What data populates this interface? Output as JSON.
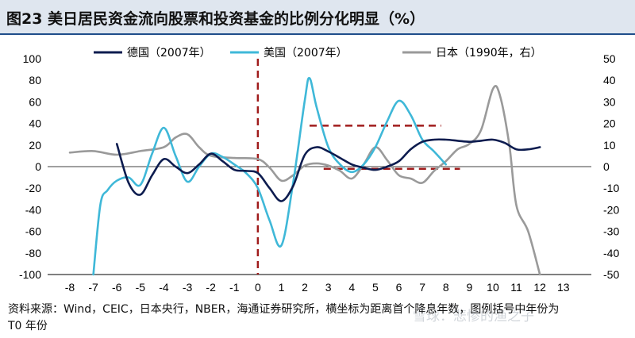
{
  "title": "图23 美日居民资金流向股票和投资基金的比例分化明显（%）",
  "source": {
    "line1": "资料来源：Wind，CEIC，日本央行，NBER，海通证券研究所，横坐标为距离首个降息年数，图例括号中年份为",
    "line2": "T0 年份"
  },
  "watermark": "雪球：悲惨的渔之子",
  "colors": {
    "germany": "#0d1c4f",
    "usa": "#3fb8d8",
    "japan": "#9a9a9a",
    "dash": "#a01c1c",
    "title_bar": "#dfe6ef"
  },
  "chart_data": {
    "type": "line",
    "title": "美日居民资金流向股票和投资基金的比例分化明显（%）",
    "xlabel": "",
    "ylabel": "",
    "xlim": [
      -8,
      13
    ],
    "ylim": [
      -100,
      100
    ],
    "y2lim": [
      -50,
      50
    ],
    "legend_position": "top",
    "x_ticks": [
      -8,
      -7,
      -6,
      -5,
      -4,
      -3,
      -2,
      -1,
      0,
      1,
      2,
      3,
      4,
      5,
      6,
      7,
      8,
      9,
      10,
      11,
      12,
      13
    ],
    "y_ticks": [
      -100,
      -80,
      -60,
      -40,
      -20,
      0,
      20,
      40,
      60,
      80,
      100
    ],
    "y2_ticks": [
      -50,
      -40,
      -30,
      -20,
      -10,
      0,
      10,
      20,
      30,
      40,
      50
    ],
    "series": [
      {
        "name": "德国（2007年）",
        "key": "germany",
        "axis": "left",
        "x": [
          -6,
          -5.5,
          -5,
          -4.5,
          -4,
          -3.5,
          -3,
          -2.5,
          -2,
          -1.5,
          -1,
          -0.5,
          0,
          0.5,
          1,
          1.5,
          2,
          2.5,
          3,
          3.5,
          4,
          4.5,
          5,
          5.5,
          6,
          6.5,
          7,
          7.5,
          8,
          8.5,
          9,
          9.5,
          10,
          10.5,
          11,
          11.5,
          12
        ],
        "y": [
          21,
          -15,
          -26,
          -8,
          7,
          0,
          -6,
          2,
          12,
          5,
          -3,
          -4,
          -6,
          -20,
          -32,
          -18,
          11,
          18,
          14,
          8,
          2,
          -1,
          -3,
          0,
          5,
          16,
          23,
          25,
          25,
          24,
          23,
          24,
          25,
          22,
          16,
          16,
          18
        ]
      },
      {
        "name": "美国（2007年）",
        "key": "usa",
        "axis": "left",
        "x": [
          -7,
          -6.7,
          -6.4,
          -6,
          -5.5,
          -5,
          -4.5,
          -4,
          -3.5,
          -3,
          -2.5,
          -2,
          -1.5,
          -1,
          -0.5,
          0,
          0.5,
          1,
          1.5,
          2,
          2.2,
          2.5,
          3,
          3.5,
          4,
          4.5,
          5,
          5.5,
          6,
          6.5,
          7,
          7.5,
          8
        ],
        "y": [
          -100,
          -35,
          -22,
          -13,
          -10,
          -17,
          12,
          36,
          10,
          -14,
          0,
          12,
          9,
          2,
          -6,
          -20,
          -50,
          -73,
          -15,
          62,
          82,
          55,
          18,
          2,
          -5,
          2,
          18,
          42,
          61,
          48,
          25,
          14,
          2
        ]
      },
      {
        "name": "日本（1990年，右）",
        "key": "japan",
        "axis": "right",
        "x": [
          -8,
          -7,
          -6,
          -5,
          -4,
          -3.5,
          -3,
          -2.5,
          -2,
          -1,
          0,
          0.5,
          1,
          1.5,
          2,
          2.5,
          3,
          3.5,
          4,
          4.5,
          5,
          5.5,
          6,
          6.5,
          7,
          7.5,
          8,
          8.5,
          9,
          9.5,
          10,
          10.3,
          10.7,
          11,
          11.5,
          12
        ],
        "y": [
          6.5,
          7.2,
          5.5,
          7.2,
          9,
          13.5,
          15,
          9,
          5,
          4,
          3.5,
          -0.5,
          -6.5,
          -4,
          0.5,
          1.5,
          0.5,
          -2,
          -5.5,
          1,
          9,
          3,
          -4,
          -5.5,
          -7.5,
          -2,
          2.5,
          8,
          10.5,
          17,
          36,
          33,
          10,
          -18,
          -30,
          -50
        ]
      }
    ],
    "reference_lines": [
      {
        "type": "vertical",
        "x": 0,
        "from": -100,
        "to": 100,
        "axis": "left"
      },
      {
        "type": "horizontal",
        "y": 38,
        "from": 2.2,
        "to": 7.8,
        "axis": "left"
      },
      {
        "type": "horizontal",
        "y": -2,
        "from": 2.8,
        "to": 8.6,
        "axis": "left"
      }
    ]
  }
}
